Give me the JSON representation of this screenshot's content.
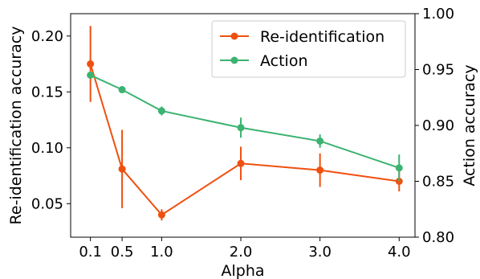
{
  "chart_data": {
    "type": "line",
    "x": [
      0.1,
      0.5,
      1.0,
      2.0,
      3.0,
      4.0
    ],
    "x_tick_labels": [
      "0.1",
      "0.5",
      "1.0",
      "2.0",
      "3.0",
      "4.0"
    ],
    "xlabel": "Alpha",
    "xlim": [
      -0.15,
      4.2
    ],
    "y_left": {
      "label": "Re-identification accuracy",
      "lim": [
        0.02,
        0.22
      ],
      "ticks": [
        0.05,
        0.1,
        0.15,
        0.2
      ],
      "tick_labels": [
        "0.05",
        "0.10",
        "0.15",
        "0.20"
      ]
    },
    "y_right": {
      "label": "Action accuracy",
      "lim": [
        0.8,
        1.0
      ],
      "ticks": [
        0.8,
        0.85,
        0.9,
        0.95,
        1.0
      ],
      "tick_labels": [
        "0.80",
        "0.85",
        "0.90",
        "0.95",
        "1.00"
      ]
    },
    "series": [
      {
        "name": "Re-identification",
        "axis": "left",
        "color": "#f0500f",
        "values": [
          0.175,
          0.081,
          0.04,
          0.086,
          0.08,
          0.07
        ],
        "errors": [
          0.034,
          0.035,
          0.005,
          0.015,
          0.015,
          0.009
        ]
      },
      {
        "name": "Action",
        "axis": "right",
        "color": "#3cb371",
        "values": [
          0.945,
          0.932,
          0.913,
          0.898,
          0.886,
          0.862
        ],
        "errors": [
          0.0,
          0.0,
          0.004,
          0.009,
          0.006,
          0.012
        ]
      }
    ],
    "legend": {
      "position": "top-right"
    },
    "grid": false
  }
}
